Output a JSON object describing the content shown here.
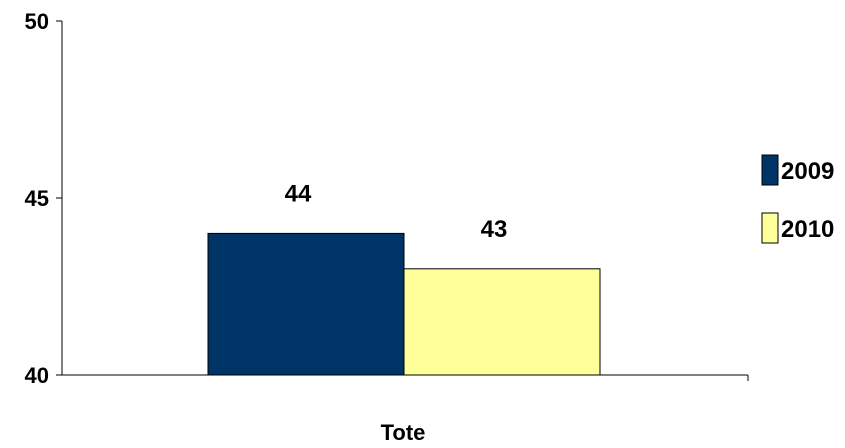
{
  "chart_data": {
    "type": "bar",
    "categories": [
      "Tote"
    ],
    "series": [
      {
        "name": "2009",
        "values": [
          44
        ],
        "color": "#003366"
      },
      {
        "name": "2010",
        "values": [
          43
        ],
        "color": "#FFFF99"
      }
    ],
    "data_labels": [
      "44",
      "43"
    ],
    "ylim": [
      40,
      50
    ],
    "yticks": [
      40,
      45,
      50
    ],
    "ytick_labels": [
      "40",
      "45",
      "50"
    ],
    "grid": false,
    "legend_position": "right"
  }
}
